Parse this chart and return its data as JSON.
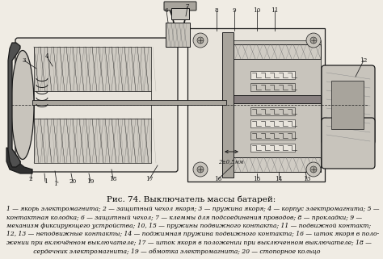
{
  "bg_color": "#ffffff",
  "fig_bg": "#f0ece4",
  "title": "Рис. 74. Выключатель массы батарей:",
  "title_fontsize": 7.5,
  "caption_lines": [
    "1 — якорь электромагнита; 2 — защитный чехол якоря; 3 — пружина якоря; 4 — корпус электромагнита; 5 —",
    "контактная колодка; 6 — защитный чехол; 7 — клеммы для подсоединения проводов; 8 — прокладки; 9 —",
    "механизм фиксирующего устройства; 10, 15 — пружины подвижного контакта; 11 — подвижной контакт;",
    "12, 13 — неподвижные контакты; 14 — поджимная пружина подвижного контакта; 16 — шток якоря в поло-",
    "жении при включённом выключателе; 17 — шток якоря в положении при выключенном выключателе; 18 —",
    "              сердечник электромагнита; 19 — обмотка электромагнита; 20 — стопорное кольцо"
  ],
  "caption_fontsize": 5.5,
  "fig_width": 4.74,
  "fig_height": 3.21,
  "dpi": 100
}
